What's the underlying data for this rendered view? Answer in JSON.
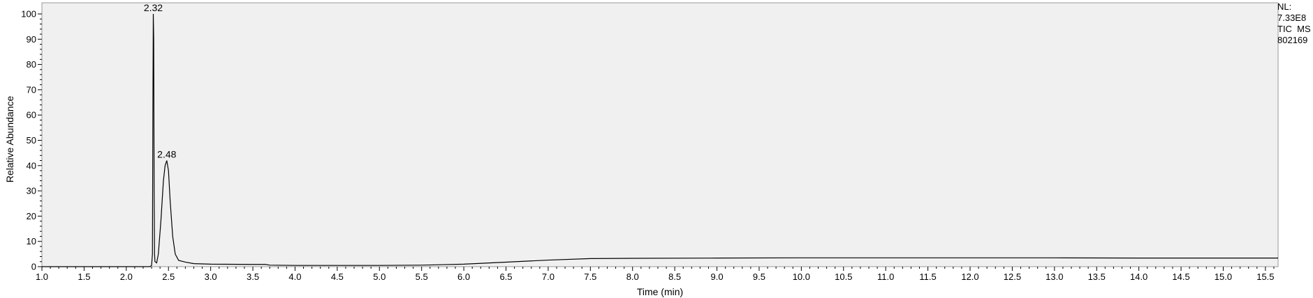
{
  "chart_data": {
    "type": "line",
    "title": "",
    "xlabel": "Time (min)",
    "ylabel": "Relative Abundance",
    "xlim": [
      1.0,
      15.65
    ],
    "ylim": [
      0,
      100
    ],
    "x_ticks": [
      "1.0",
      "1.5",
      "2.0",
      "2.5",
      "3.0",
      "3.5",
      "4.0",
      "4.5",
      "5.0",
      "5.5",
      "6.0",
      "6.5",
      "7.0",
      "7.5",
      "8.0",
      "8.5",
      "9.0",
      "9.5",
      "10.0",
      "10.5",
      "11.0",
      "11.5",
      "12.0",
      "12.5",
      "13.0",
      "13.5",
      "14.0",
      "14.5",
      "15.0",
      "15.5"
    ],
    "y_ticks": [
      "0",
      "10",
      "20",
      "30",
      "40",
      "50",
      "60",
      "70",
      "80",
      "90",
      "100"
    ],
    "grid": false,
    "legend": "none",
    "info": [
      "NL:",
      "7.33E8",
      "TIC  MS",
      "802169"
    ],
    "peak_annotations": [
      {
        "label": "2.32",
        "x": 2.32,
        "y": 100
      },
      {
        "label": "2.48",
        "x": 2.48,
        "y": 42
      }
    ],
    "series": [
      {
        "x": [
          1.0,
          2.28,
          2.3,
          2.31,
          2.315,
          2.32,
          2.325,
          2.33,
          2.335,
          2.34,
          2.36,
          2.38,
          2.41,
          2.44,
          2.46,
          2.48,
          2.5,
          2.52,
          2.55,
          2.58,
          2.62,
          2.7,
          2.8,
          3.0,
          3.5,
          3.65,
          3.7,
          4.0,
          5.0,
          5.5,
          6.0,
          6.5,
          7.0,
          7.5,
          8.0,
          9.0,
          10.0,
          11.0,
          12.0,
          13.0,
          14.0,
          15.0,
          15.65
        ],
        "values": [
          0,
          0,
          0.5,
          5,
          60,
          100,
          90,
          30,
          5,
          2,
          1.5,
          5,
          18,
          34,
          40,
          42,
          38,
          26,
          12,
          5,
          2.5,
          1.8,
          1.2,
          1.0,
          0.9,
          0.9,
          0.6,
          0.5,
          0.5,
          0.6,
          1.0,
          1.8,
          2.6,
          3.2,
          3.3,
          3.4,
          3.5,
          3.5,
          3.5,
          3.5,
          3.4,
          3.4,
          3.4
        ]
      }
    ]
  }
}
